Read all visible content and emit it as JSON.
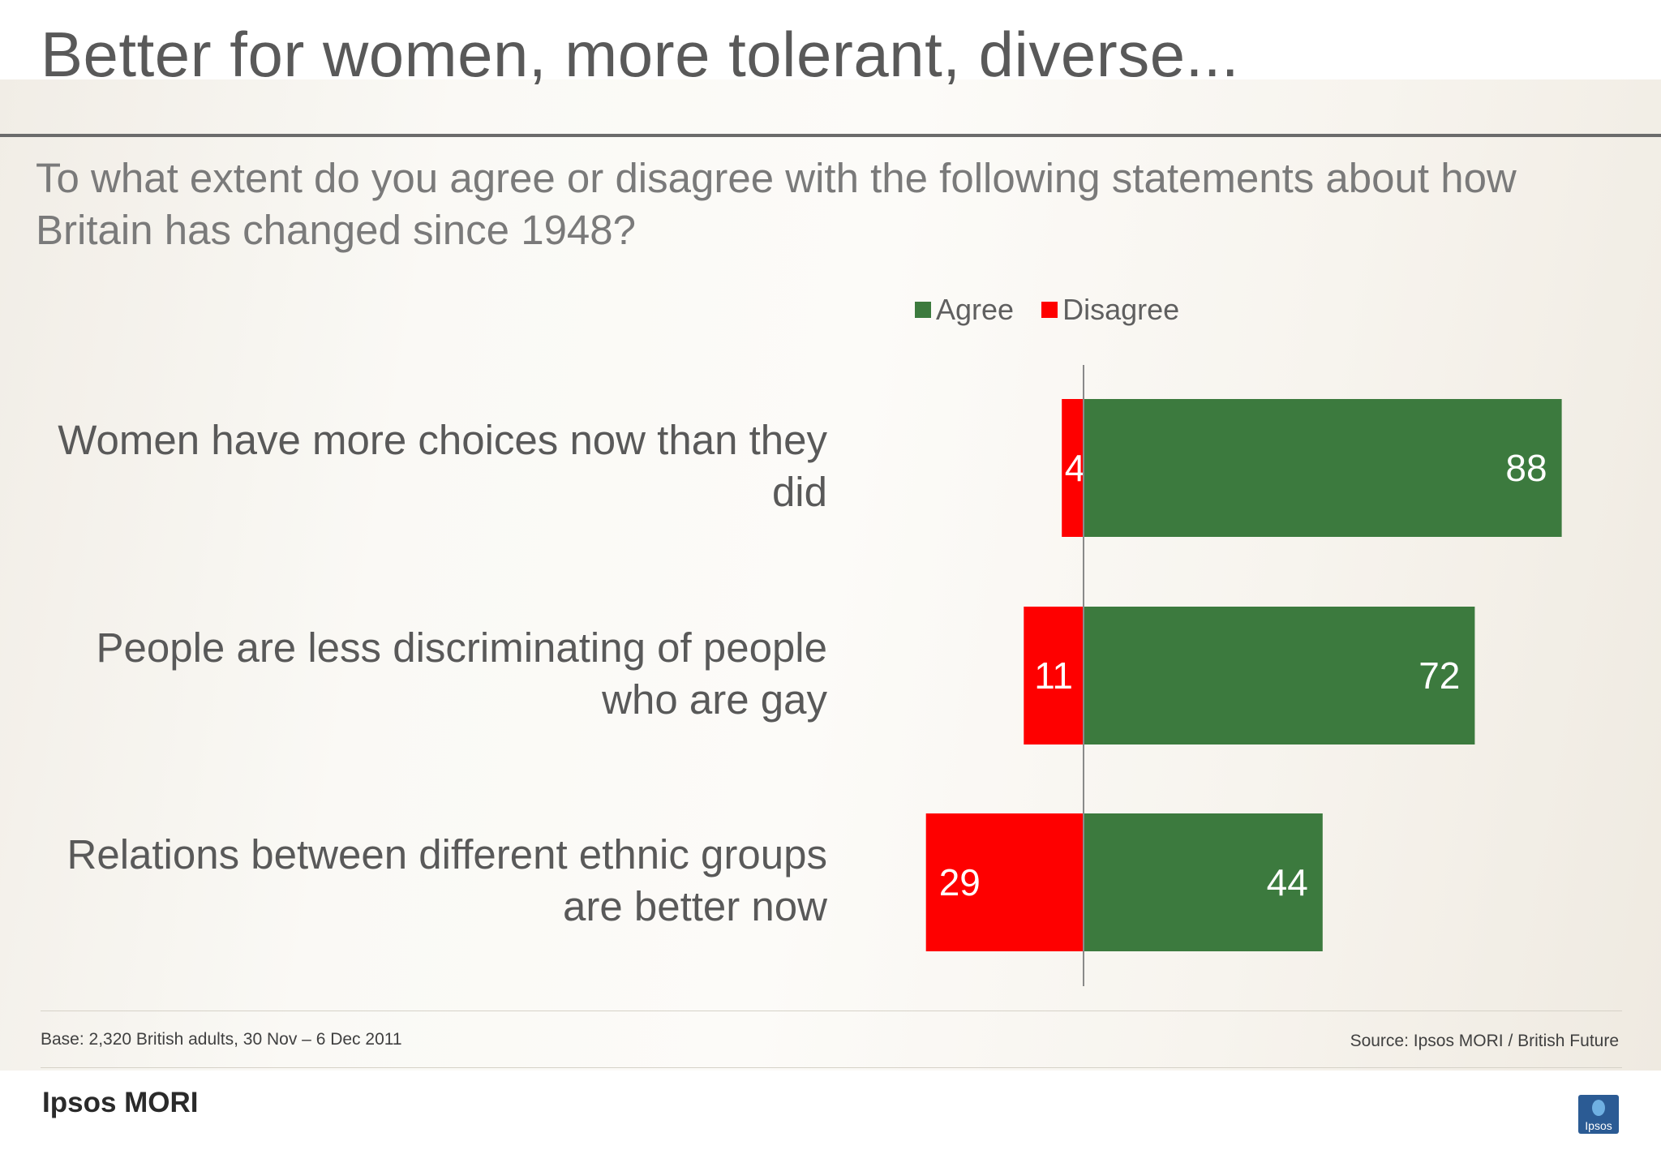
{
  "title": "Better for women, more tolerant, diverse...",
  "question": "To what extent do you agree or disagree with the following statements about how Britain has changed since 1948?",
  "chart_data": {
    "type": "bar",
    "orientation": "horizontal-diverging",
    "categories": [
      "Women have more choices now than they did",
      "People are less discriminating of people who are gay",
      "Relations between different ethnic groups are better now"
    ],
    "series": [
      {
        "name": "Agree",
        "color": "#3c7a3e",
        "values": [
          88,
          72,
          44
        ]
      },
      {
        "name": "Disagree",
        "color": "#fe0000",
        "values": [
          4,
          11,
          29
        ]
      }
    ],
    "legend_position": "top",
    "grid": false
  },
  "footer": {
    "base": "Base: 2,320 British adults, 30 Nov – 6 Dec 2011",
    "source": "Source: Ipsos MORI / British Future"
  },
  "brand": {
    "name": "Ipsos MORI",
    "logo_text": "Ipsos"
  }
}
